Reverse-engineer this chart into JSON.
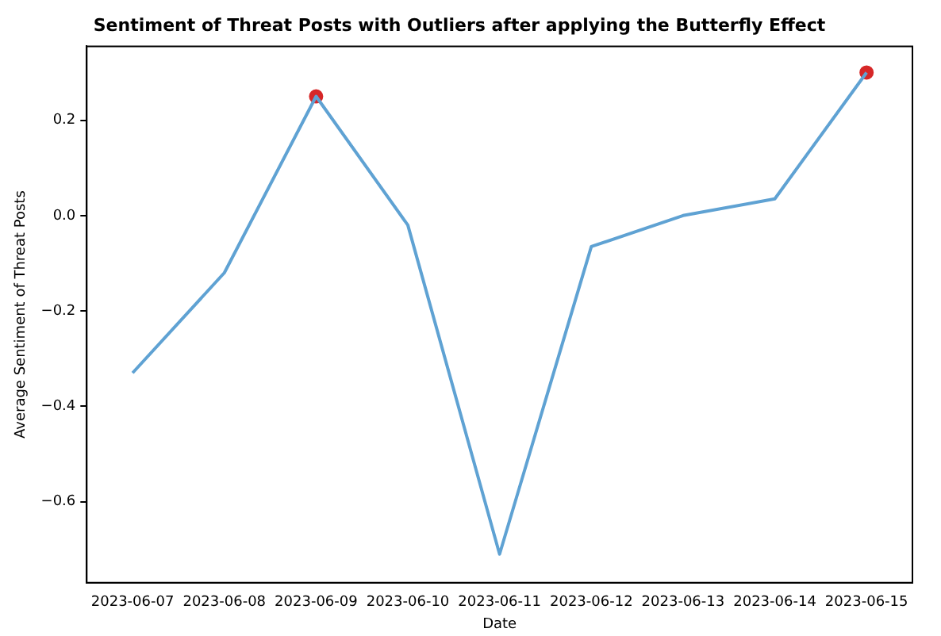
{
  "chart_data": {
    "type": "line",
    "title": "Sentiment of Threat Posts with Outliers after applying the Butterfly Effect",
    "xlabel": "Date",
    "ylabel": "Average Sentiment of Threat Posts",
    "categories": [
      "2023-06-07",
      "2023-06-08",
      "2023-06-09",
      "2023-06-10",
      "2023-06-11",
      "2023-06-12",
      "2023-06-13",
      "2023-06-14",
      "2023-06-15"
    ],
    "series": [
      {
        "color": "#5fa2d3",
        "marker": "none",
        "values": [
          -0.33,
          -0.12,
          0.25,
          -0.02,
          -0.71,
          -0.065,
          0.0,
          0.035,
          0.3
        ]
      },
      {
        "type": "scatter",
        "color": "#d62728",
        "marker": "circle",
        "values": [
          null,
          null,
          0.25,
          null,
          null,
          null,
          null,
          null,
          0.3
        ]
      }
    ],
    "ylim": [
      -0.77,
      0.355
    ],
    "yticks": [
      {
        "value": -0.6,
        "label": "−0.6"
      },
      {
        "value": -0.4,
        "label": "−0.4"
      },
      {
        "value": -0.2,
        "label": "−0.2"
      },
      {
        "value": 0.0,
        "label": "0.0"
      },
      {
        "value": 0.2,
        "label": "0.2"
      }
    ],
    "grid": false,
    "legend": false
  }
}
